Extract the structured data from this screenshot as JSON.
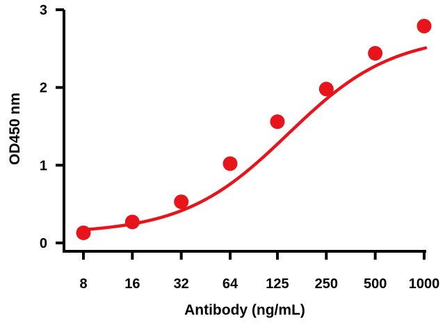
{
  "chart_data": {
    "type": "scatter",
    "title": "",
    "xlabel": "Antibody (ng/mL)",
    "ylabel": "OD450 nm",
    "x_scale": "log2",
    "x_ticks": [
      "8",
      "16",
      "32",
      "64",
      "125",
      "250",
      "500",
      "1000"
    ],
    "x_tick_values": [
      8,
      16,
      32,
      64,
      125,
      250,
      500,
      1000
    ],
    "ylim": [
      0,
      3
    ],
    "y_ticks": [
      "0",
      "1",
      "2",
      "3"
    ],
    "y_tick_values": [
      0,
      1,
      2,
      3
    ],
    "grid": false,
    "legend": "none",
    "series": [
      {
        "color": "#e8141b",
        "points": [
          {
            "x": 8,
            "y": 0.13
          },
          {
            "x": 16,
            "y": 0.27
          },
          {
            "x": 32,
            "y": 0.53
          },
          {
            "x": 64,
            "y": 1.02
          },
          {
            "x": 125,
            "y": 1.56
          },
          {
            "x": 250,
            "y": 1.98
          },
          {
            "x": 500,
            "y": 2.44
          },
          {
            "x": 1000,
            "y": 2.79
          }
        ],
        "fit": {
          "model": "4PL",
          "bottom": 0.12,
          "top": 2.68,
          "ec50": 145,
          "hill": 1.35
        }
      }
    ]
  }
}
